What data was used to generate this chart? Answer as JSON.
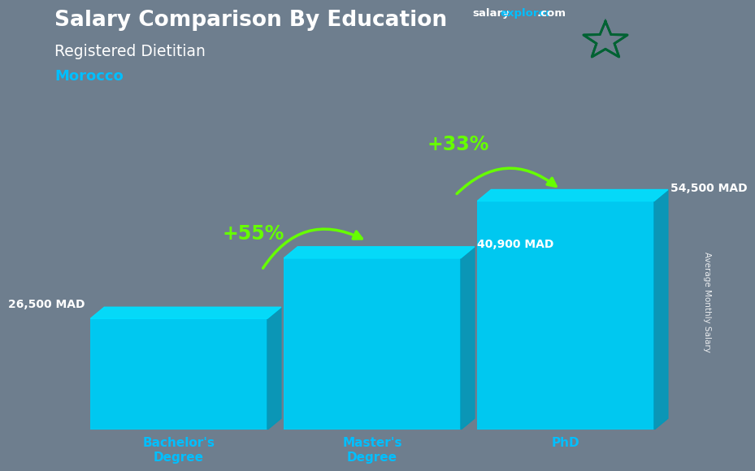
{
  "title": "Salary Comparison By Education",
  "subtitle": "Registered Dietitian",
  "country": "Morocco",
  "categories": [
    "Bachelor's\nDegree",
    "Master's\nDegree",
    "PhD"
  ],
  "values": [
    26500,
    40900,
    54500
  ],
  "value_labels": [
    "26,500 MAD",
    "40,900 MAD",
    "54,500 MAD"
  ],
  "bar_color_main": "#00C8F0",
  "bar_color_dark": "#0099BB",
  "bar_color_top": "#00DFFF",
  "pct_labels": [
    "+55%",
    "+33%"
  ],
  "background_color": "#6e7e8e",
  "title_color": "#ffffff",
  "subtitle_color": "#ffffff",
  "country_color": "#00BFFF",
  "xtick_color": "#00BFFF",
  "value_label_color": "#ffffff",
  "arrow_color": "#66FF00",
  "pct_color": "#66FF00",
  "ylabel": "Average Monthly Salary",
  "brand_salary_color": "#ffffff",
  "brand_explorer_color": "#00BFFF",
  "brand_com_color": "#ffffff",
  "flag_red": "#C1272D",
  "flag_green": "#006233",
  "ylim_max": 68000,
  "bar_width": 0.32,
  "x_positions": [
    0.15,
    0.5,
    0.85
  ]
}
